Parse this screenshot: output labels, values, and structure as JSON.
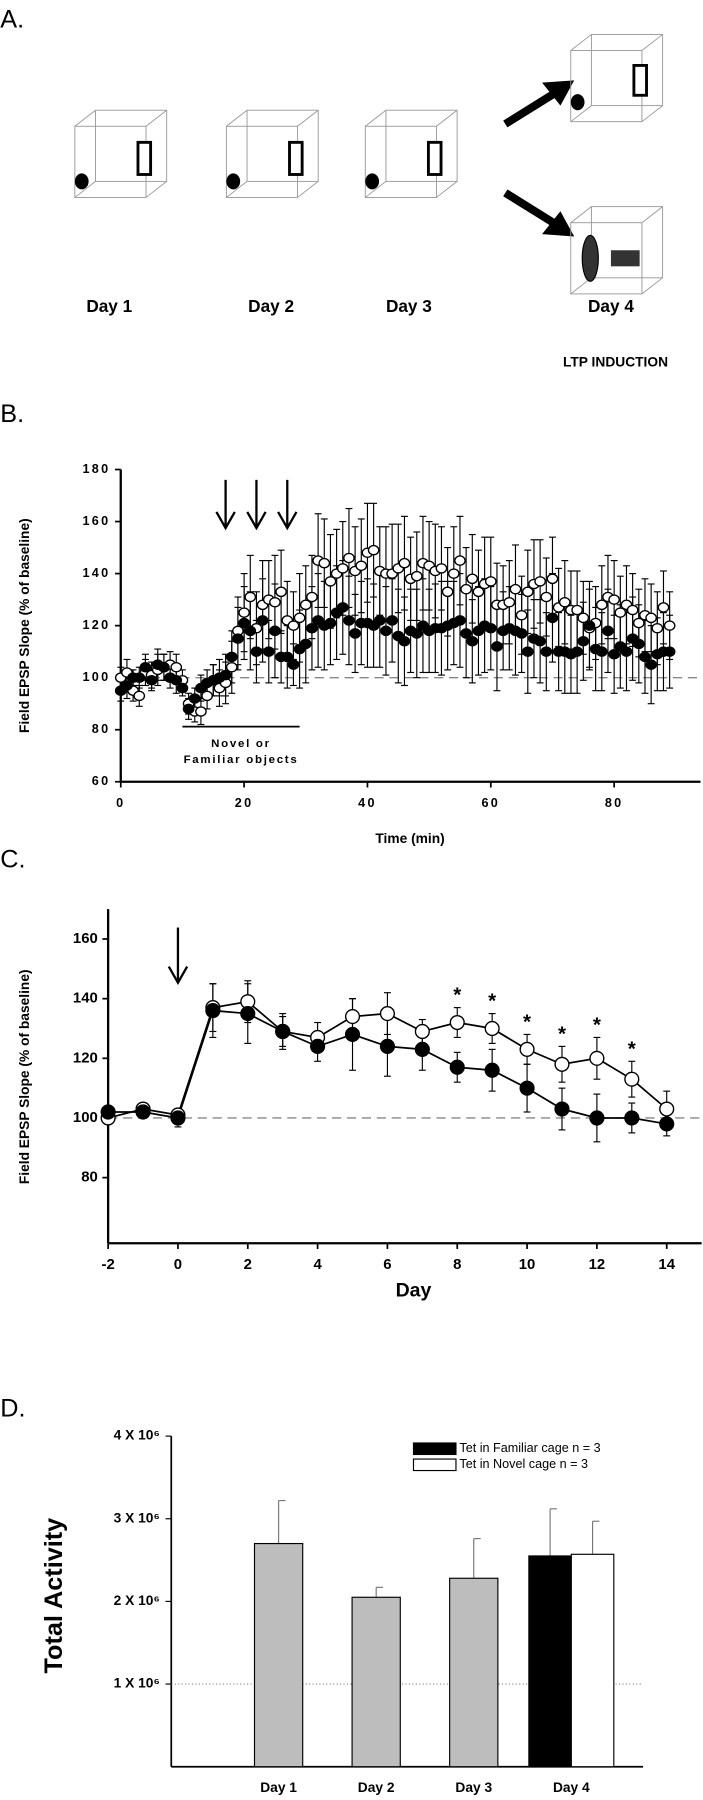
{
  "panel_a": {
    "label": "A.",
    "days": [
      "Day 1",
      "Day 2",
      "Day 3",
      "Day 4"
    ],
    "note": "LTP INDUCTION"
  },
  "chart_data": [
    {
      "type": "scatter",
      "panel_label": "B.",
      "ylabel": "Field  EPSP Slope (% of  baseline)",
      "xlabel": "Time (min)",
      "xlim": [
        0,
        94
      ],
      "xticks": [
        0,
        20,
        40,
        60,
        80
      ],
      "ylim": [
        60,
        180
      ],
      "yticks": [
        60,
        80,
        100,
        120,
        140,
        160,
        180
      ],
      "reference_line": 100,
      "arrows": [
        17,
        22,
        27
      ],
      "bar_annotation": {
        "lines": [
          "Novel or",
          "Familiar objects"
        ],
        "x": [
          10,
          29
        ]
      },
      "x": [
        0,
        1,
        2,
        3,
        4,
        5,
        6,
        7,
        8,
        9,
        10,
        11,
        12,
        13,
        14,
        15,
        16,
        17,
        18,
        19,
        20,
        21,
        22,
        23,
        24,
        25,
        26,
        27,
        28,
        29,
        30,
        31,
        32,
        33,
        34,
        35,
        36,
        37,
        38,
        39,
        40,
        41,
        42,
        43,
        44,
        45,
        46,
        47,
        48,
        49,
        50,
        51,
        52,
        53,
        54,
        55,
        56,
        57,
        58,
        59,
        60,
        61,
        62,
        63,
        64,
        65,
        66,
        67,
        68,
        69,
        70,
        71,
        72,
        73,
        74,
        75,
        76,
        77,
        78,
        79,
        80,
        81,
        82,
        83,
        84,
        85,
        86,
        87,
        88,
        89
      ],
      "series": [
        {
          "fill": "#ffffff",
          "color": "#000000",
          "values": [
            100,
            102,
            95,
            93,
            102,
            101,
            103,
            104,
            105,
            104,
            99,
            90,
            87,
            87,
            93,
            99,
            96,
            98,
            104,
            118,
            125,
            131,
            119,
            128,
            130,
            129,
            133,
            122,
            120,
            123,
            128,
            131,
            145,
            144,
            137,
            140,
            142,
            146,
            141,
            143,
            148,
            149,
            141,
            140,
            140,
            142,
            144,
            138,
            139,
            144,
            143,
            141,
            142,
            133,
            140,
            145,
            134,
            138,
            133,
            136,
            137,
            128,
            128,
            129,
            134,
            124,
            133,
            136,
            137,
            131,
            138,
            127,
            129,
            126,
            126,
            123,
            119,
            121,
            128,
            131,
            130,
            125,
            128,
            126,
            121,
            124,
            123,
            119,
            127,
            120
          ],
          "errors": [
            4,
            5,
            4,
            4,
            5,
            5,
            6,
            5,
            5,
            5,
            4,
            4,
            4,
            5,
            5,
            6,
            7,
            8,
            10,
            13,
            15,
            16,
            14,
            17,
            15,
            18,
            16,
            15,
            13,
            17,
            15,
            16,
            18,
            17,
            18,
            17,
            18,
            19,
            17,
            18,
            19,
            18,
            17,
            18,
            19,
            17,
            18,
            16,
            17,
            18,
            17,
            18,
            16,
            17,
            18,
            17,
            16,
            17,
            16,
            18,
            17,
            16,
            15,
            16,
            17,
            15,
            16,
            17,
            16,
            15,
            16,
            15,
            16,
            15,
            15,
            14,
            15,
            14,
            15,
            16,
            15,
            14,
            15,
            14,
            13,
            14,
            13,
            14,
            14,
            13
          ]
        },
        {
          "fill": "#000000",
          "color": "#000000",
          "values": [
            95,
            97,
            100,
            100,
            104,
            99,
            105,
            104,
            100,
            99,
            96,
            88,
            92,
            96,
            98,
            99,
            100,
            101,
            108,
            115,
            121,
            118,
            110,
            122,
            110,
            118,
            108,
            108,
            105,
            111,
            113,
            119,
            122,
            120,
            121,
            125,
            127,
            122,
            117,
            121,
            121,
            120,
            122,
            118,
            122,
            116,
            114,
            118,
            117,
            120,
            118,
            119,
            119,
            120,
            121,
            122,
            117,
            114,
            118,
            120,
            119,
            112,
            118,
            119,
            118,
            117,
            110,
            115,
            114,
            110,
            123,
            110,
            110,
            109,
            110,
            114,
            120,
            111,
            110,
            118,
            109,
            112,
            110,
            115,
            113,
            108,
            105,
            109,
            110,
            110
          ],
          "errors": [
            4,
            5,
            3,
            4,
            5,
            4,
            6,
            5,
            4,
            5,
            3,
            4,
            4,
            5,
            5,
            6,
            7,
            8,
            10,
            12,
            14,
            15,
            12,
            16,
            12,
            18,
            10,
            12,
            8,
            15,
            15,
            16,
            18,
            17,
            16,
            18,
            18,
            17,
            15,
            16,
            17,
            16,
            18,
            17,
            16,
            18,
            17,
            16,
            17,
            18,
            16,
            17,
            18,
            17,
            16,
            18,
            17,
            16,
            17,
            18,
            16,
            17,
            15,
            16,
            17,
            15,
            16,
            15,
            16,
            15,
            17,
            15,
            16,
            15,
            16,
            15,
            17,
            16,
            15,
            16,
            15,
            16,
            15,
            16,
            15,
            14,
            15,
            14,
            15,
            14
          ]
        }
      ]
    },
    {
      "type": "line",
      "panel_label": "C.",
      "ylabel": "Field EPSP Slope (% of  baseline)",
      "xlabel": "Day",
      "xlim": [
        -2,
        15
      ],
      "xticks": [
        -2,
        0,
        2,
        4,
        6,
        8,
        10,
        12,
        14
      ],
      "ylim": [
        58,
        170
      ],
      "yticks": [
        80,
        100,
        120,
        140,
        160
      ],
      "reference_line": 100,
      "arrows": [
        0
      ],
      "significance": {
        "label": "*",
        "x": [
          8,
          9,
          10,
          11,
          12,
          13
        ]
      },
      "x": [
        -2,
        -1,
        0,
        1,
        2,
        3,
        4,
        5,
        6,
        7,
        8,
        9,
        10,
        11,
        12,
        13,
        14
      ],
      "series": [
        {
          "fill": "#ffffff",
          "color": "#000000",
          "values": [
            100,
            103,
            101,
            137,
            139,
            129,
            127,
            134,
            135,
            129,
            132,
            130,
            123,
            118,
            120,
            113,
            103
          ],
          "errors": [
            2,
            2,
            2,
            8,
            7,
            5,
            5,
            6,
            7,
            4,
            5,
            5,
            5,
            6,
            7,
            6,
            6
          ]
        },
        {
          "fill": "#000000",
          "color": "#000000",
          "values": [
            102,
            102,
            100,
            136,
            135,
            129,
            124,
            128,
            124,
            123,
            117,
            116,
            110,
            103,
            100,
            100,
            98
          ],
          "errors": [
            2,
            2,
            3,
            9,
            10,
            6,
            5,
            12,
            10,
            7,
            5,
            7,
            8,
            7,
            8,
            5,
            4
          ]
        }
      ]
    },
    {
      "type": "bar",
      "panel_label": "D.",
      "ylabel": "Total Activity",
      "ylim": [
        0,
        4000000
      ],
      "yticks": [
        {
          "value": 1000000,
          "label": "1 X 10⁶"
        },
        {
          "value": 2000000,
          "label": "2 X 10⁶"
        },
        {
          "value": 3000000,
          "label": "3 X 10⁶"
        },
        {
          "value": 4000000,
          "label": "4 X 10⁶"
        }
      ],
      "reference_line": 1000000,
      "categories": [
        "Day 1",
        "Day 2",
        "Day 3",
        "Day 4"
      ],
      "series": [
        {
          "color": "#bdbdbd",
          "values": [
            2700000,
            2050000,
            2280000,
            null
          ],
          "errors": [
            520000,
            120000,
            480000,
            null
          ]
        },
        {
          "name": "Tet in Familiar cage n = 3",
          "color": "#000000",
          "values": [
            null,
            null,
            null,
            2550000
          ],
          "errors": [
            null,
            null,
            null,
            570000
          ]
        },
        {
          "name": "Tet in Novel cage n = 3",
          "color": "#ffffff",
          "values": [
            null,
            null,
            null,
            2570000
          ],
          "errors": [
            null,
            null,
            null,
            400000
          ]
        }
      ]
    }
  ]
}
